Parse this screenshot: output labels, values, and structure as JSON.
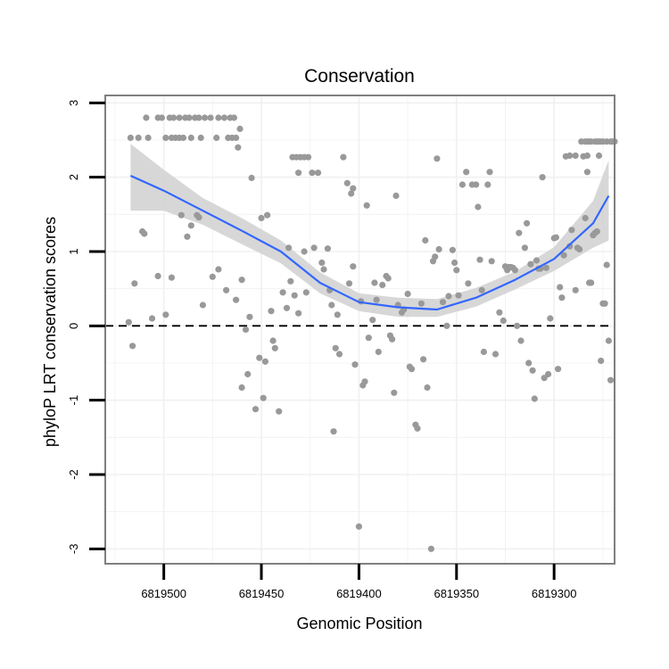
{
  "chart_data": {
    "type": "scatter",
    "title": "Conservation",
    "xlabel": "Genomic Position",
    "ylabel": "phyloP LRT conservation scores",
    "x_reversed": true,
    "xlim": [
      6819530,
      6819269
    ],
    "ylim": [
      -3.2,
      3.1
    ],
    "x_ticks": [
      6819500,
      6819450,
      6819400,
      6819350,
      6819300
    ],
    "x_tick_labels": [
      "6819500",
      "6819450",
      "6819400",
      "6819350",
      "6819300"
    ],
    "y_ticks": [
      -3,
      -2,
      -1,
      0,
      1,
      2,
      3
    ],
    "y_tick_labels": [
      "-3",
      "-2",
      "-1",
      "0",
      "1",
      "2",
      "3"
    ],
    "reference_line": {
      "y": 0,
      "style": "dashed"
    },
    "grid": true,
    "colors": {
      "points": "#999999",
      "smooth_line": "#3366ff",
      "ribbon": "#d3d3d3",
      "panel_border": "#7f7f7f",
      "grid": "#f0f0f0"
    },
    "points": [
      [
        6819517,
        2.53
      ],
      [
        6819513,
        2.53
      ],
      [
        6819508,
        2.53
      ],
      [
        6819499,
        2.53
      ],
      [
        6819496,
        2.53
      ],
      [
        6819494,
        2.53
      ],
      [
        6819492,
        2.53
      ],
      [
        6819490,
        2.53
      ],
      [
        6819486,
        2.53
      ],
      [
        6819481,
        2.53
      ],
      [
        6819473,
        2.53
      ],
      [
        6819467,
        2.53
      ],
      [
        6819465,
        2.53
      ],
      [
        6819463,
        2.53
      ],
      [
        6819509,
        2.8
      ],
      [
        6819503,
        2.8
      ],
      [
        6819501,
        2.8
      ],
      [
        6819497,
        2.8
      ],
      [
        6819495,
        2.8
      ],
      [
        6819492,
        2.8
      ],
      [
        6819489,
        2.8
      ],
      [
        6819487,
        2.8
      ],
      [
        6819484,
        2.8
      ],
      [
        6819482,
        2.8
      ],
      [
        6819479,
        2.8
      ],
      [
        6819476,
        2.8
      ],
      [
        6819472,
        2.8
      ],
      [
        6819469,
        2.8
      ],
      [
        6819466,
        2.8
      ],
      [
        6819464,
        2.8
      ],
      [
        6819461,
        2.65
      ],
      [
        6819462,
        2.4
      ],
      [
        6819455,
        1.99
      ],
      [
        6819518,
        0.05
      ],
      [
        6819516,
        -0.27
      ],
      [
        6819515,
        0.57
      ],
      [
        6819511,
        1.27
      ],
      [
        6819510,
        1.24
      ],
      [
        6819506,
        0.1
      ],
      [
        6819503,
        0.67
      ],
      [
        6819499,
        0.15
      ],
      [
        6819496,
        0.65
      ],
      [
        6819491,
        1.49
      ],
      [
        6819488,
        1.2
      ],
      [
        6819486,
        1.35
      ],
      [
        6819483,
        1.49
      ],
      [
        6819482,
        1.46
      ],
      [
        6819480,
        0.28
      ],
      [
        6819475,
        0.66
      ],
      [
        6819472,
        0.76
      ],
      [
        6819468,
        0.48
      ],
      [
        6819463,
        0.35
      ],
      [
        6819460,
        0.62
      ],
      [
        6819458,
        -0.05
      ],
      [
        6819457,
        -0.65
      ],
      [
        6819460,
        -0.83
      ],
      [
        6819456,
        0.12
      ],
      [
        6819453,
        -1.12
      ],
      [
        6819451,
        -0.43
      ],
      [
        6819449,
        -0.97
      ],
      [
        6819450,
        1.45
      ],
      [
        6819447,
        1.49
      ],
      [
        6819445,
        0.2
      ],
      [
        6819448,
        -0.48
      ],
      [
        6819444,
        -0.2
      ],
      [
        6819443,
        -0.3
      ],
      [
        6819441,
        -1.15
      ],
      [
        6819439,
        0.45
      ],
      [
        6819437,
        0.24
      ],
      [
        6819435,
        0.6
      ],
      [
        6819433,
        0.41
      ],
      [
        6819431,
        0.17
      ],
      [
        6819436,
        1.05
      ],
      [
        6819428,
        1.0
      ],
      [
        6819427,
        0.45
      ],
      [
        6819434,
        2.27
      ],
      [
        6819432,
        2.27
      ],
      [
        6819430,
        2.27
      ],
      [
        6819428,
        2.27
      ],
      [
        6819426,
        2.27
      ],
      [
        6819431,
        2.06
      ],
      [
        6819424,
        2.06
      ],
      [
        6819421,
        2.06
      ],
      [
        6819423,
        1.05
      ],
      [
        6819419,
        0.85
      ],
      [
        6819418,
        0.76
      ],
      [
        6819416,
        1.04
      ],
      [
        6819414,
        0.28
      ],
      [
        6819415,
        0.48
      ],
      [
        6819413,
        -1.42
      ],
      [
        6819412,
        -0.3
      ],
      [
        6819410,
        -0.38
      ],
      [
        6819411,
        0.15
      ],
      [
        6819408,
        2.27
      ],
      [
        6819406,
        1.92
      ],
      [
        6819405,
        0.57
      ],
      [
        6819404,
        1.78
      ],
      [
        6819403,
        0.8
      ],
      [
        6819403,
        1.85
      ],
      [
        6819402,
        -0.52
      ],
      [
        6819400,
        -2.7
      ],
      [
        6819399,
        0.33
      ],
      [
        6819398,
        -0.8
      ],
      [
        6819397,
        -0.75
      ],
      [
        6819396,
        1.62
      ],
      [
        6819395,
        -0.16
      ],
      [
        6819393,
        0.08
      ],
      [
        6819392,
        0.58
      ],
      [
        6819391,
        0.35
      ],
      [
        6819390,
        -0.35
      ],
      [
        6819388,
        0.55
      ],
      [
        6819386,
        0.67
      ],
      [
        6819385,
        0.64
      ],
      [
        6819384,
        -0.13
      ],
      [
        6819383,
        -0.18
      ],
      [
        6819382,
        -0.9
      ],
      [
        6819381,
        1.75
      ],
      [
        6819380,
        0.28
      ],
      [
        6819378,
        0.18
      ],
      [
        6819377,
        0.22
      ],
      [
        6819375,
        0.43
      ],
      [
        6819374,
        -0.55
      ],
      [
        6819373,
        -0.58
      ],
      [
        6819371,
        -1.33
      ],
      [
        6819370,
        -1.38
      ],
      [
        6819368,
        0.3
      ],
      [
        6819367,
        -0.45
      ],
      [
        6819366,
        1.15
      ],
      [
        6819365,
        -0.83
      ],
      [
        6819363,
        -3.0
      ],
      [
        6819362,
        0.87
      ],
      [
        6819361,
        0.93
      ],
      [
        6819360,
        2.25
      ],
      [
        6819359,
        1.03
      ],
      [
        6819357,
        0.32
      ],
      [
        6819355,
        0.0
      ],
      [
        6819354,
        0.4
      ],
      [
        6819352,
        1.02
      ],
      [
        6819351,
        0.85
      ],
      [
        6819350,
        0.75
      ],
      [
        6819349,
        0.41
      ],
      [
        6819347,
        1.9
      ],
      [
        6819345,
        2.07
      ],
      [
        6819344,
        0.57
      ],
      [
        6819342,
        1.9
      ],
      [
        6819340,
        1.9
      ],
      [
        6819339,
        1.6
      ],
      [
        6819338,
        0.89
      ],
      [
        6819337,
        0.48
      ],
      [
        6819336,
        -0.35
      ],
      [
        6819334,
        1.9
      ],
      [
        6819333,
        2.07
      ],
      [
        6819332,
        0.87
      ],
      [
        6819330,
        -0.38
      ],
      [
        6819328,
        0.18
      ],
      [
        6819326,
        0.07
      ],
      [
        6819325,
        0.8
      ],
      [
        6819324,
        0.75
      ],
      [
        6819323,
        0.79
      ],
      [
        6819322,
        0.79
      ],
      [
        6819321,
        0.78
      ],
      [
        6819320,
        0.75
      ],
      [
        6819319,
        0.0
      ],
      [
        6819318,
        1.25
      ],
      [
        6819317,
        -0.2
      ],
      [
        6819315,
        1.05
      ],
      [
        6819314,
        1.38
      ],
      [
        6819313,
        -0.5
      ],
      [
        6819312,
        0.83
      ],
      [
        6819311,
        -0.6
      ],
      [
        6819310,
        -0.98
      ],
      [
        6819309,
        0.88
      ],
      [
        6819308,
        0.77
      ],
      [
        6819307,
        0.77
      ],
      [
        6819306,
        2.0
      ],
      [
        6819305,
        -0.7
      ],
      [
        6819304,
        0.78
      ],
      [
        6819303,
        -0.65
      ],
      [
        6819302,
        0.1
      ],
      [
        6819300,
        1.18
      ],
      [
        6819299,
        1.19
      ],
      [
        6819298,
        -0.58
      ],
      [
        6819297,
        0.52
      ],
      [
        6819296,
        0.38
      ],
      [
        6819295,
        0.95
      ],
      [
        6819294,
        2.28
      ],
      [
        6819292,
        1.07
      ],
      [
        6819291,
        1.29
      ],
      [
        6819289,
        0.48
      ],
      [
        6819288,
        1.05
      ],
      [
        6819287,
        1.03
      ],
      [
        6819285,
        2.28
      ],
      [
        6819284,
        1.45
      ],
      [
        6819283,
        2.07
      ],
      [
        6819282,
        0.58
      ],
      [
        6819281,
        0.58
      ],
      [
        6819280,
        1.22
      ],
      [
        6819279,
        1.25
      ],
      [
        6819278,
        1.27
      ],
      [
        6819277,
        2.29
      ],
      [
        6819276,
        -0.47
      ],
      [
        6819275,
        0.3
      ],
      [
        6819274,
        0.3
      ],
      [
        6819273,
        0.82
      ],
      [
        6819272,
        -0.2
      ],
      [
        6819271,
        -0.73
      ],
      [
        6819292,
        2.29
      ],
      [
        6819289,
        2.29
      ],
      [
        6819283,
        2.29
      ],
      [
        6819286,
        2.48
      ],
      [
        6819284,
        2.48
      ],
      [
        6819283,
        2.48
      ],
      [
        6819282,
        2.48
      ],
      [
        6819281,
        2.48
      ],
      [
        6819279,
        2.48
      ],
      [
        6819278,
        2.48
      ],
      [
        6819277,
        2.48
      ],
      [
        6819276,
        2.48
      ],
      [
        6819275,
        2.48
      ],
      [
        6819273,
        2.48
      ],
      [
        6819271,
        2.48
      ],
      [
        6819270,
        2.48
      ],
      [
        6819269,
        2.48
      ]
    ],
    "smooth_line": {
      "x": [
        6819517,
        6819500,
        6819480,
        6819460,
        6819440,
        6819420,
        6819400,
        6819380,
        6819360,
        6819340,
        6819320,
        6819300,
        6819280,
        6819272
      ],
      "y": [
        2.02,
        1.82,
        1.55,
        1.28,
        1.0,
        0.58,
        0.32,
        0.25,
        0.22,
        0.38,
        0.62,
        0.9,
        1.38,
        1.75
      ]
    },
    "ribbon": {
      "x": [
        6819517,
        6819500,
        6819480,
        6819460,
        6819440,
        6819420,
        6819400,
        6819380,
        6819360,
        6819340,
        6819320,
        6819300,
        6819280,
        6819272
      ],
      "lower": [
        1.55,
        1.55,
        1.36,
        1.1,
        0.84,
        0.44,
        0.2,
        0.12,
        0.12,
        0.26,
        0.49,
        0.74,
        1.05,
        1.15
      ],
      "upper": [
        2.45,
        2.1,
        1.72,
        1.45,
        1.15,
        0.72,
        0.44,
        0.38,
        0.36,
        0.51,
        0.73,
        1.06,
        1.68,
        2.23
      ]
    }
  }
}
